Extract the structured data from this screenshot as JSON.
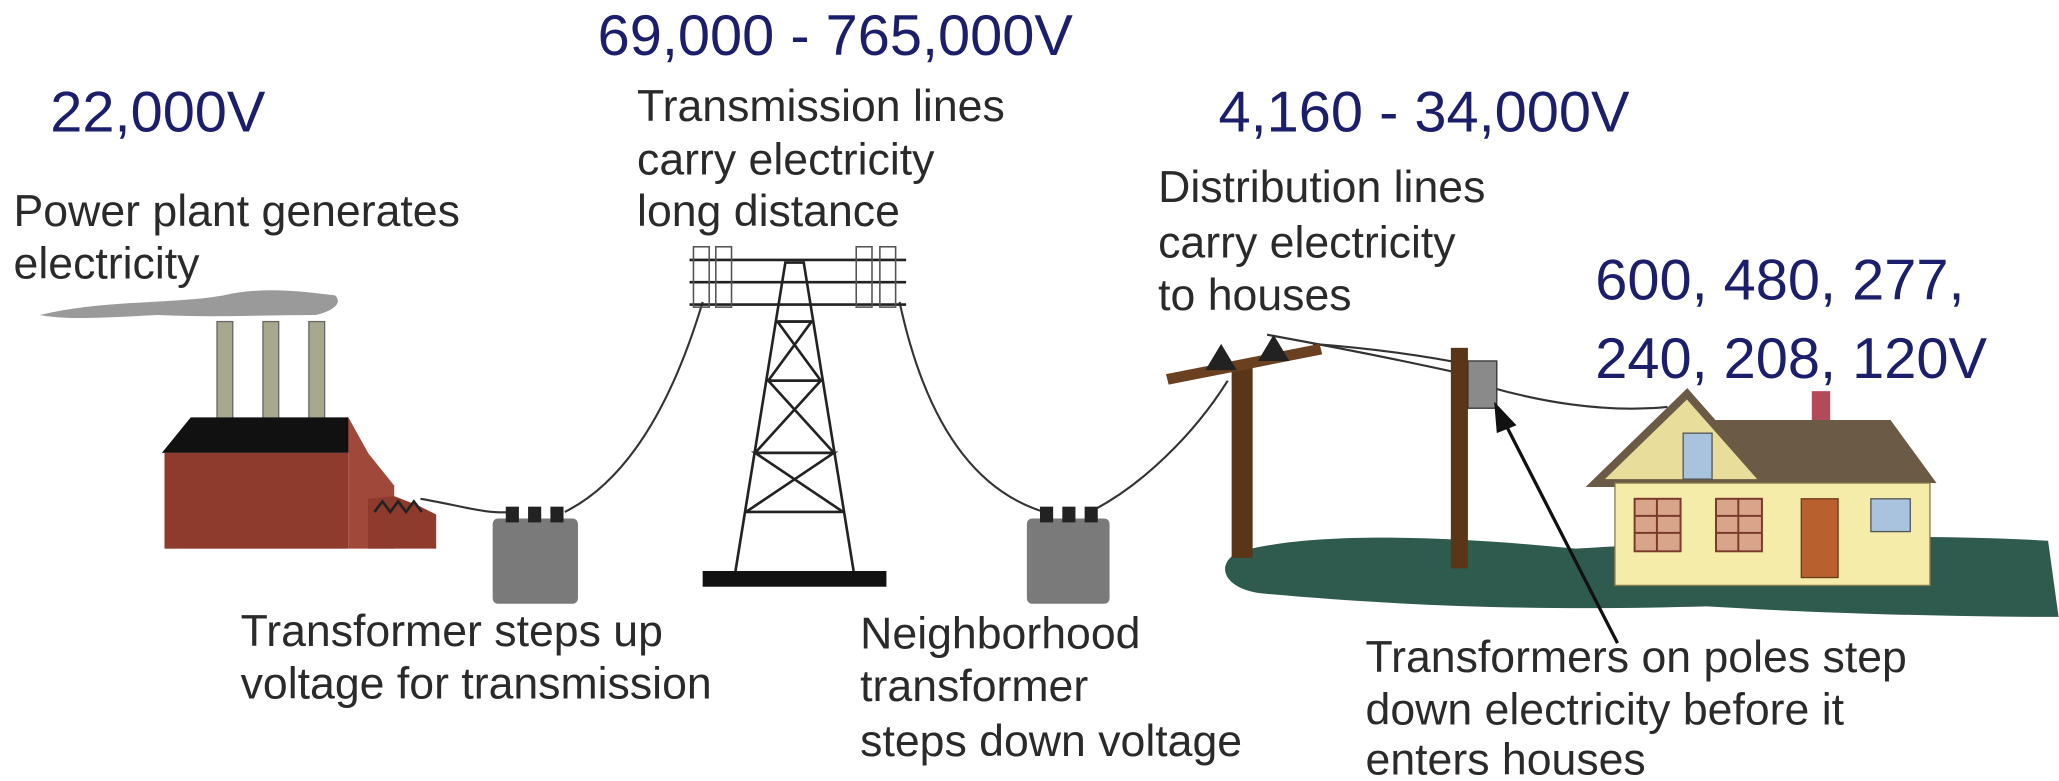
{
  "stages": [
    {
      "voltage": [
        "22,000V"
      ],
      "description": [
        "Power plant generates",
        "electricity"
      ]
    },
    {
      "description": [
        "Transformer steps up",
        "voltage for transmission"
      ]
    },
    {
      "voltage": [
        "69,000 - 765,000V"
      ],
      "description": [
        "Transmission lines",
        "carry electricity",
        "long distance"
      ]
    },
    {
      "description": [
        "Neighborhood",
        "transformer",
        "steps down voltage"
      ]
    },
    {
      "voltage": [
        "4,160 - 34,000V"
      ],
      "description": [
        "Distribution lines",
        "carry electricity",
        "to houses"
      ]
    },
    {
      "voltage": [
        "600, 480, 277,",
        "240, 208, 120V"
      ],
      "description": [
        "Transformers on poles step",
        "down electricity before it",
        "enters houses"
      ]
    }
  ]
}
